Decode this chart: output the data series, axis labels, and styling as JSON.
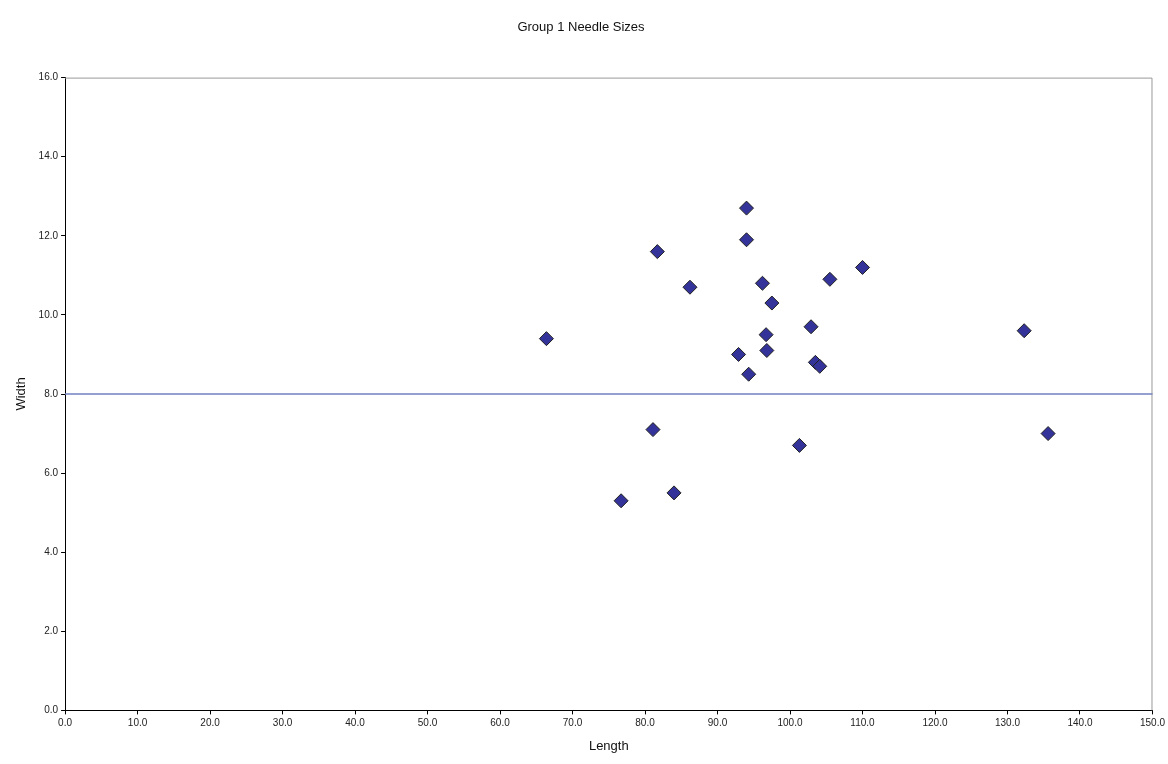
{
  "chart_data": {
    "type": "scatter",
    "title": "Group 1 Needle Sizes",
    "xlabel": "Length",
    "ylabel": "Width",
    "x": [
      66.4,
      81.7,
      86.2,
      94.0,
      94.0,
      96.2,
      97.5,
      105.5,
      110.0,
      102.9,
      96.7,
      96.8,
      92.9,
      103.5,
      104.1,
      94.3,
      81.1,
      101.3,
      76.7,
      84.0,
      132.3,
      135.6
    ],
    "series": [
      {
        "color": "#333399",
        "values": [
          9.4,
          11.6,
          10.7,
          12.7,
          11.9,
          10.8,
          10.3,
          10.9,
          11.2,
          9.7,
          9.5,
          9.1,
          9.0,
          8.8,
          8.7,
          8.5,
          7.1,
          6.7,
          5.3,
          5.5,
          9.6,
          7.0
        ]
      }
    ],
    "marker": "diamond",
    "grid": false,
    "legend": false,
    "xlim": [
      0,
      150
    ],
    "xticks": [
      {
        "value": 0,
        "label": "0.0"
      },
      {
        "value": 10,
        "label": "10.0"
      },
      {
        "value": 20,
        "label": "20.0"
      },
      {
        "value": 30,
        "label": "30.0"
      },
      {
        "value": 40,
        "label": "40.0"
      },
      {
        "value": 50,
        "label": "50.0"
      },
      {
        "value": 60,
        "label": "60.0"
      },
      {
        "value": 70,
        "label": "70.0"
      },
      {
        "value": 80,
        "label": "80.0"
      },
      {
        "value": 90,
        "label": "90.0"
      },
      {
        "value": 100,
        "label": "100.0"
      },
      {
        "value": 110,
        "label": "110.0"
      },
      {
        "value": 120,
        "label": "120.0"
      },
      {
        "value": 130,
        "label": "130.0"
      },
      {
        "value": 140,
        "label": "140.0"
      },
      {
        "value": 150,
        "label": "150.0"
      }
    ],
    "ylim": [
      0,
      16
    ],
    "yticks": [
      {
        "value": 0,
        "label": "0.0"
      },
      {
        "value": 2,
        "label": "2.0"
      },
      {
        "value": 4,
        "label": "4.0"
      },
      {
        "value": 6,
        "label": "6.0"
      },
      {
        "value": 8,
        "label": "8.0"
      },
      {
        "value": 10,
        "label": "10.0"
      },
      {
        "value": 12,
        "label": "12.0"
      },
      {
        "value": 14,
        "label": "14.0"
      },
      {
        "value": 16,
        "label": "16.0"
      }
    ],
    "ref_lines": [
      {
        "axis": "y",
        "value": 8.0,
        "color": "#7080c0"
      }
    ]
  }
}
